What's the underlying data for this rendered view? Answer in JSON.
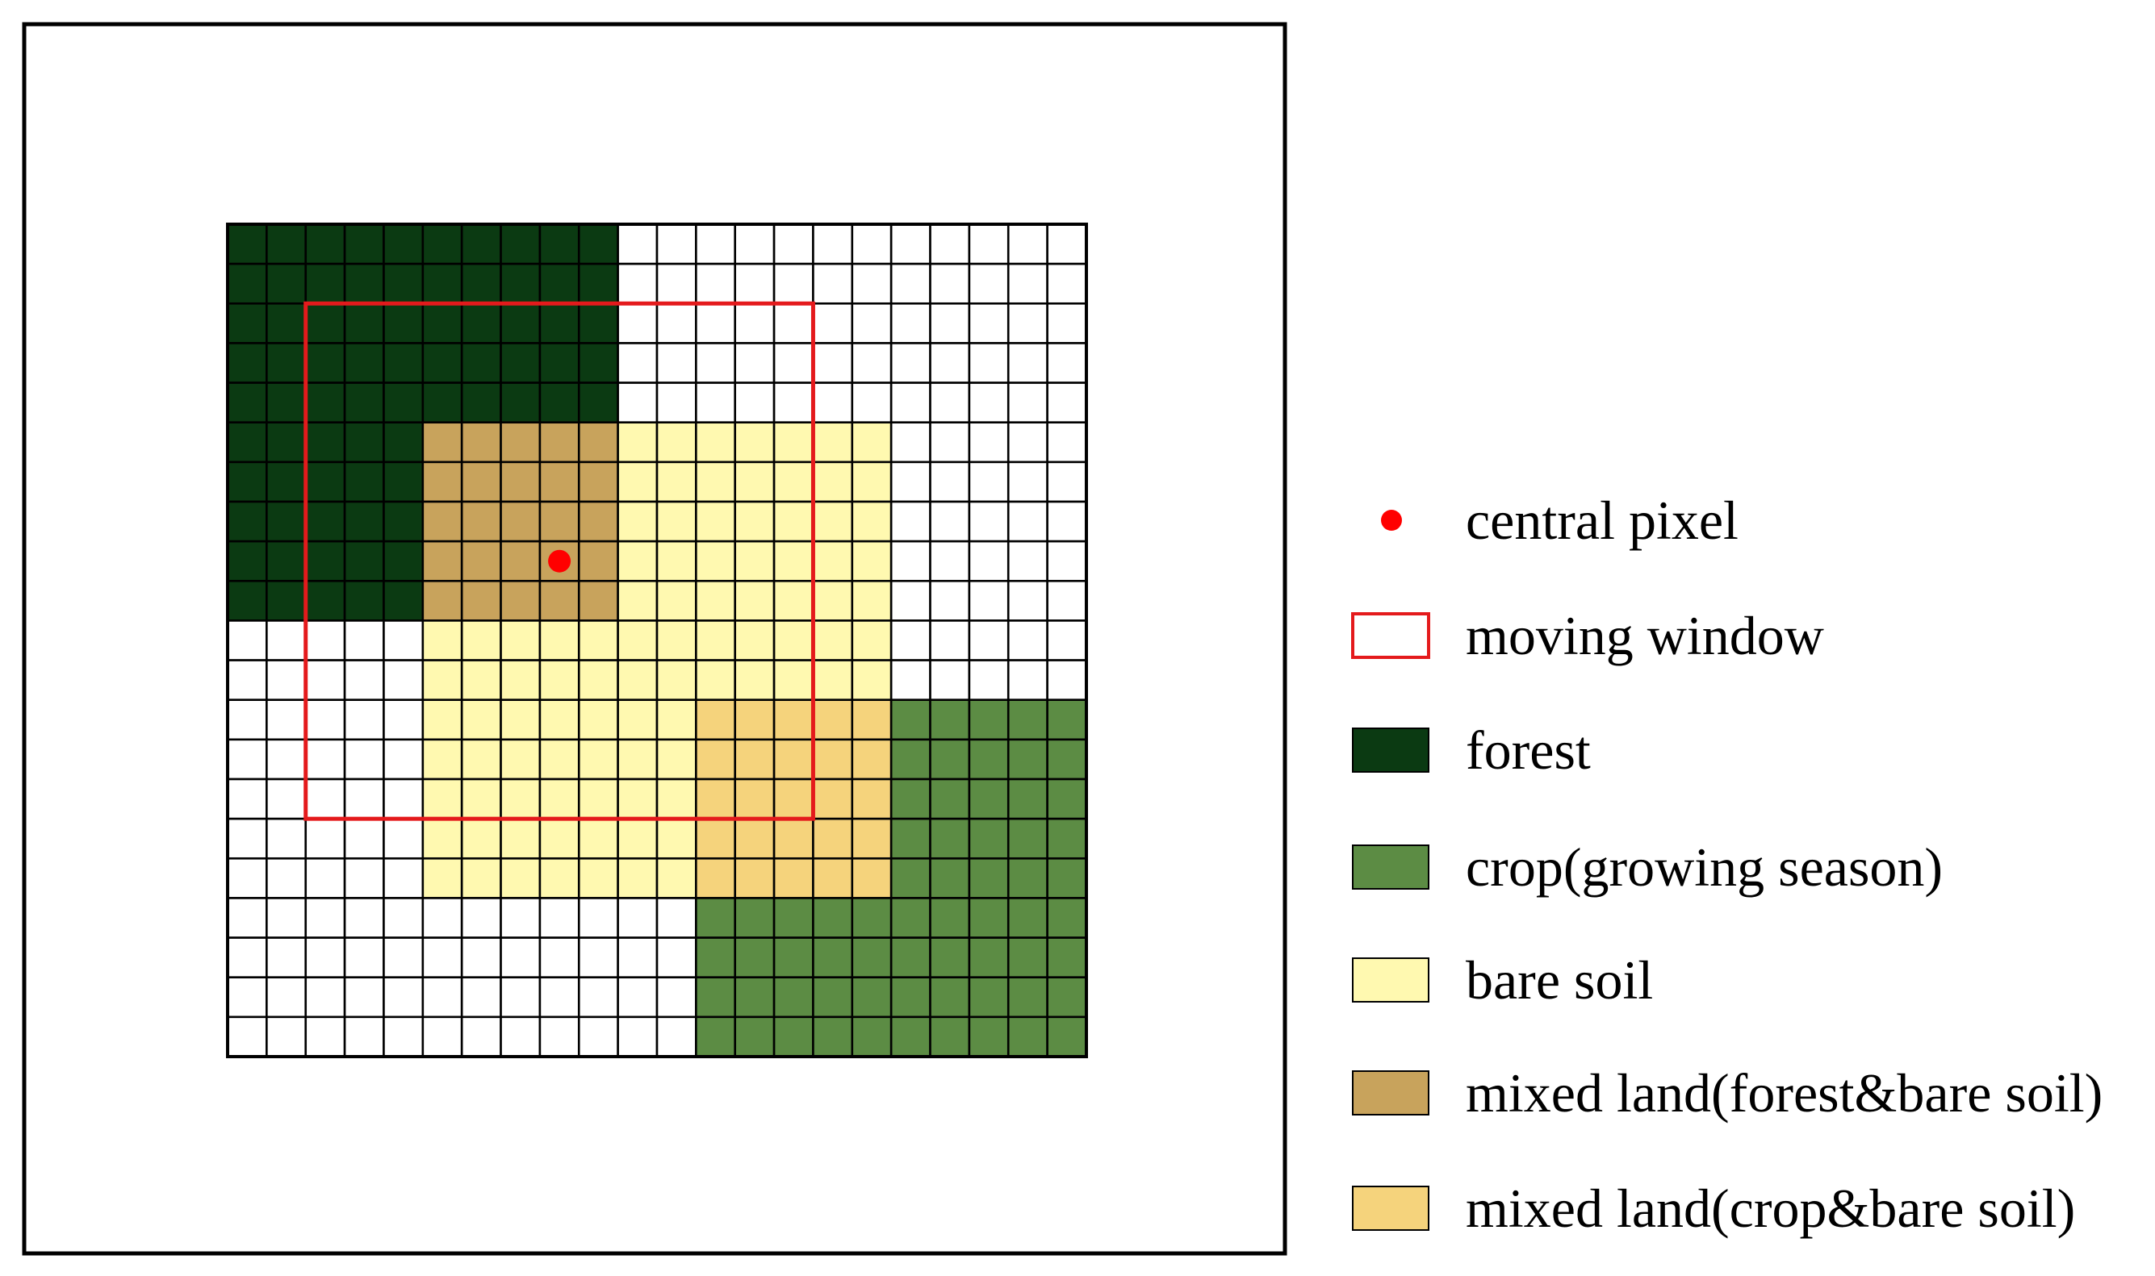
{
  "grid": {
    "cols": 22,
    "rows": 21,
    "background_color": "#ffffff",
    "line_color": "#000000",
    "regions": [
      {
        "class": "forest",
        "col_start": 0,
        "col_end": 10,
        "row_start": 0,
        "row_end": 10
      },
      {
        "class": "mixed_forest_bare",
        "col_start": 5,
        "col_end": 10,
        "row_start": 5,
        "row_end": 10
      },
      {
        "class": "bare_soil",
        "col_start": 10,
        "col_end": 17,
        "row_start": 5,
        "row_end": 10
      },
      {
        "class": "bare_soil",
        "col_start": 5,
        "col_end": 17,
        "row_start": 10,
        "row_end": 17
      },
      {
        "class": "mixed_crop_bare",
        "col_start": 12,
        "col_end": 17,
        "row_start": 12,
        "row_end": 17
      },
      {
        "class": "crop",
        "col_start": 17,
        "col_end": 22,
        "row_start": 12,
        "row_end": 21
      },
      {
        "class": "crop",
        "col_start": 12,
        "col_end": 17,
        "row_start": 17,
        "row_end": 21
      }
    ],
    "moving_window": {
      "col_start": 2,
      "col_end": 15,
      "row_start": 2,
      "row_end": 15
    },
    "central_pixel": {
      "col": 8,
      "row": 8
    }
  },
  "legend": {
    "items": [
      {
        "key": "central_pixel",
        "symbol": "dot",
        "color": "#ff0000",
        "label": "central pixel"
      },
      {
        "key": "moving_window",
        "symbol": "outline",
        "color": "#e41a1c",
        "label": "moving window"
      },
      {
        "key": "forest",
        "symbol": "box",
        "color": "#0b3a12",
        "label": "forest"
      },
      {
        "key": "crop",
        "symbol": "box",
        "color": "#5c8c44",
        "label": "crop(growing season)"
      },
      {
        "key": "bare_soil",
        "symbol": "box",
        "color": "#fff9b0",
        "label": "bare soil"
      },
      {
        "key": "mixed_forest_bare",
        "symbol": "box",
        "color": "#c8a35c",
        "label": "mixed land(forest&bare soil)"
      },
      {
        "key": "mixed_crop_bare",
        "symbol": "box",
        "color": "#f5d37c",
        "label": "mixed land(crop&bare soil)"
      }
    ]
  }
}
